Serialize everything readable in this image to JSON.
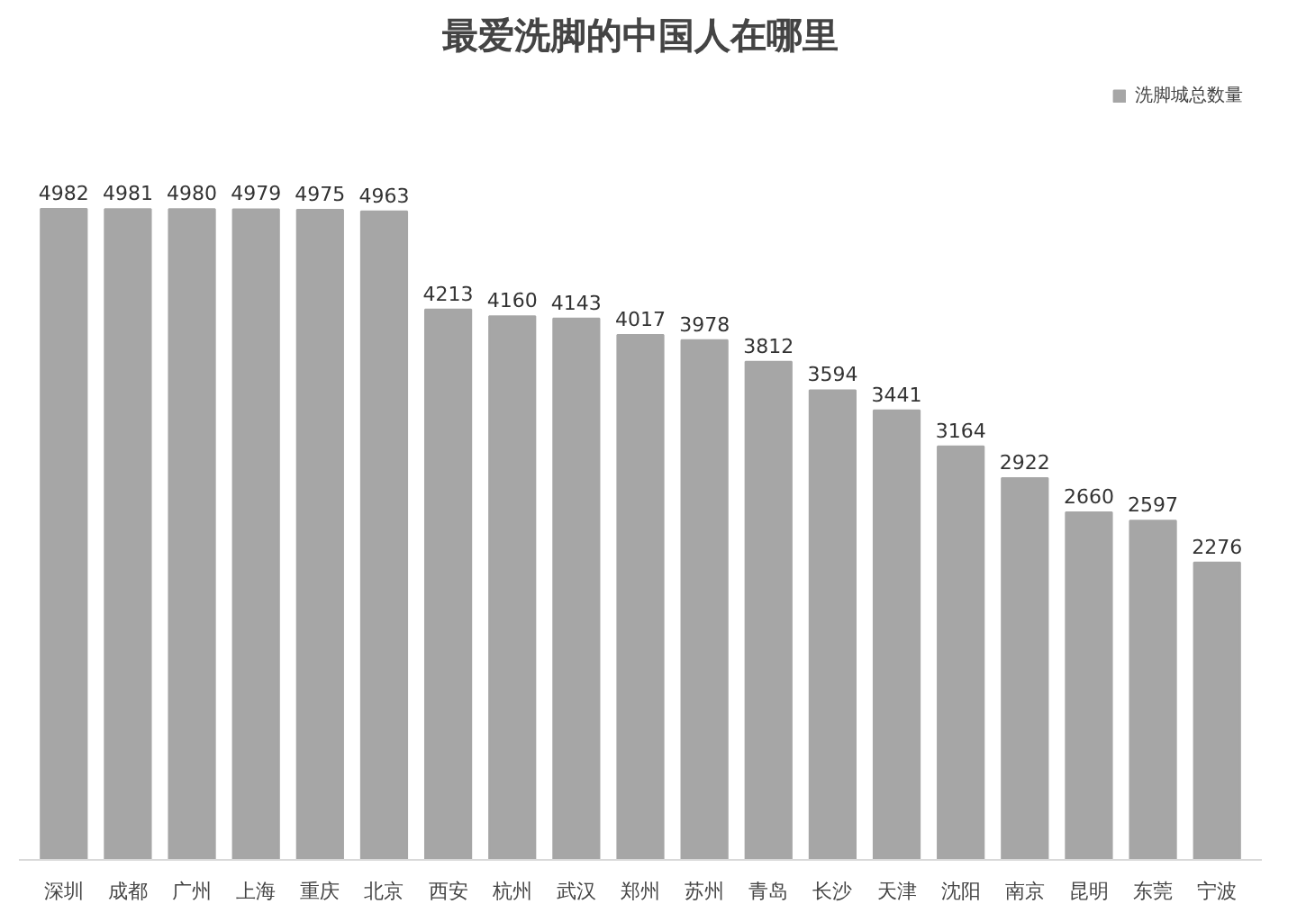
{
  "chart_data": {
    "type": "bar",
    "title": "最爱洗脚的中国人在哪里",
    "categories": [
      "深圳",
      "成都",
      "广州",
      "上海",
      "重庆",
      "北京",
      "西安",
      "杭州",
      "武汉",
      "郑州",
      "苏州",
      "青岛",
      "长沙",
      "天津",
      "沈阳",
      "南京",
      "昆明",
      "东莞",
      "宁波"
    ],
    "series": [
      {
        "name": "洗脚城总数量",
        "color": "#a6a6a6",
        "values": [
          4982,
          4981,
          4980,
          4979,
          4975,
          4963,
          4213,
          4160,
          4143,
          4017,
          3978,
          3812,
          3594,
          3441,
          3164,
          2922,
          2660,
          2597,
          2276
        ]
      }
    ],
    "data_labels": true,
    "legend": "top right",
    "grid": false
  }
}
